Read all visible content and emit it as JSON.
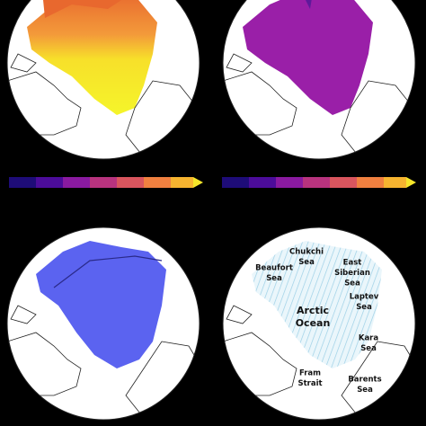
{
  "regions": [
    {
      "lines": [
        "Chukchi",
        "Sea"
      ]
    },
    {
      "lines": [
        "Beaufort",
        "Sea"
      ]
    },
    {
      "lines": [
        "East",
        "Siberian",
        "Sea"
      ]
    },
    {
      "lines": [
        "Laptev",
        "Sea"
      ]
    },
    {
      "lines": [
        "Arctic",
        "Ocean"
      ]
    },
    {
      "lines": [
        "Kara",
        "Sea"
      ]
    },
    {
      "lines": [
        "Fram",
        "Strait"
      ]
    },
    {
      "lines": [
        "Barents",
        "Sea"
      ]
    }
  ]
}
